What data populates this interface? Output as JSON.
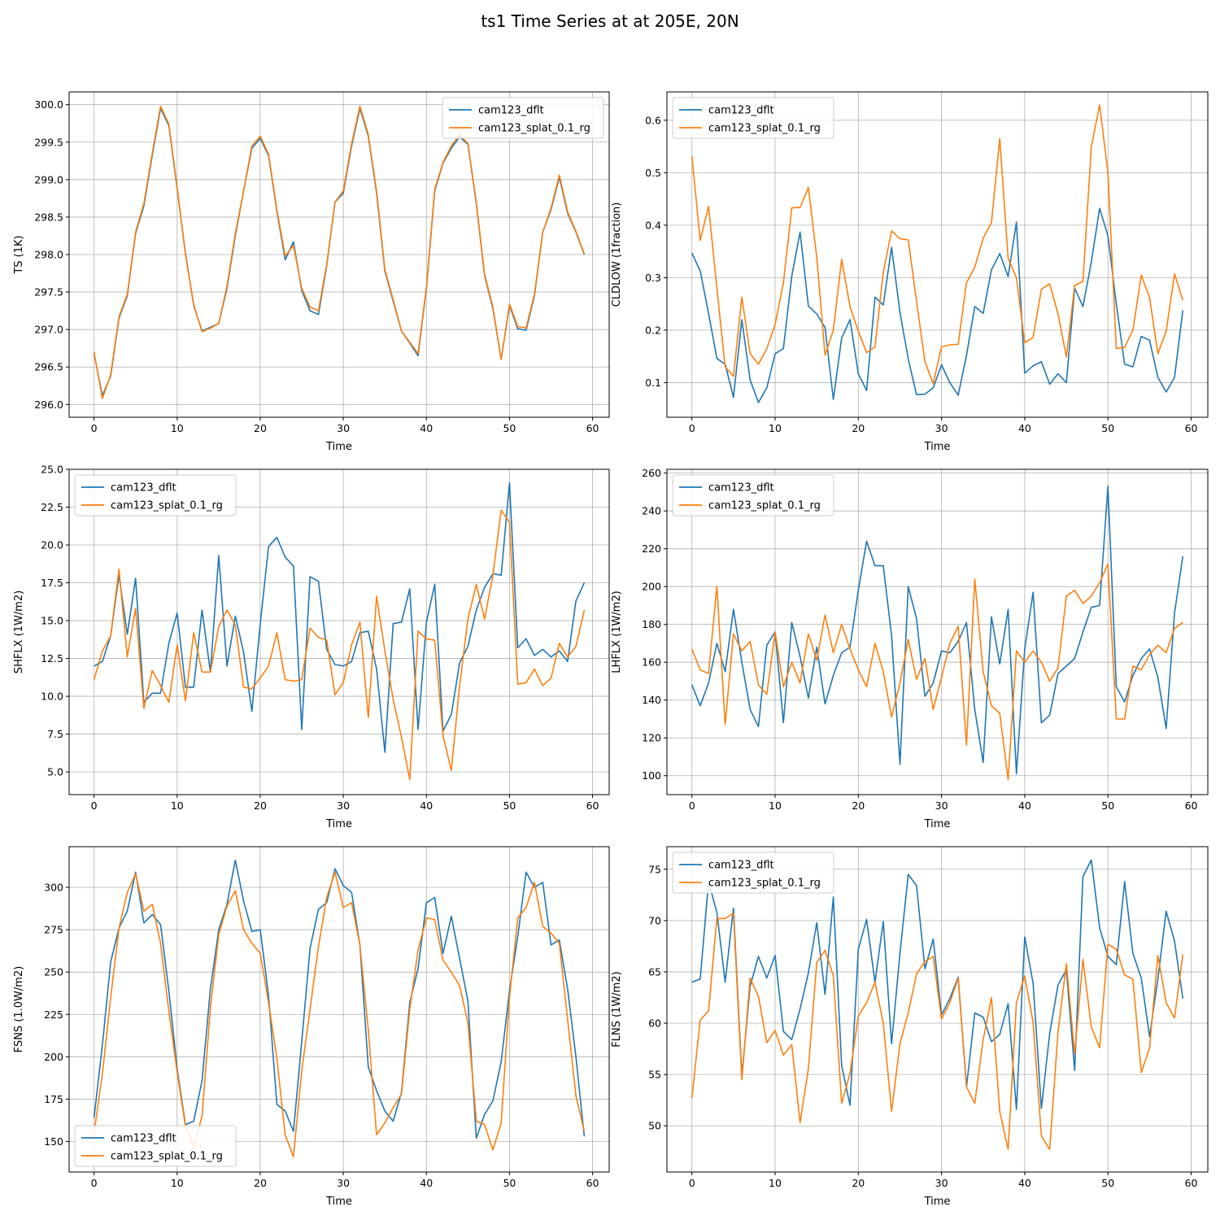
{
  "title": "ts1 Time Series at at 205E, 20N",
  "chart_data": [
    {
      "type": "line",
      "title": "",
      "xlabel": "Time",
      "ylabel": "TS (1K)",
      "xlim": [
        -3,
        62
      ],
      "ylim": [
        295.83,
        300.17
      ],
      "xticks": [
        0,
        10,
        20,
        30,
        40,
        50,
        60
      ],
      "yticks": [
        296.0,
        296.5,
        297.0,
        297.5,
        298.0,
        298.5,
        299.0,
        299.5,
        300.0
      ],
      "ytick_labels": [
        "296.0",
        "296.5",
        "297.0",
        "297.5",
        "298.0",
        "298.5",
        "299.0",
        "299.5",
        "300.0"
      ],
      "grid": true,
      "legend": "upper right",
      "series": [
        {
          "name": "cam123_dflt",
          "color": "#1f77b4",
          "values": [
            296.68,
            296.12,
            296.38,
            297.15,
            297.45,
            298.28,
            298.65,
            299.32,
            299.95,
            299.72,
            298.88,
            298.02,
            297.32,
            296.98,
            297.03,
            297.08,
            297.55,
            298.25,
            298.85,
            299.42,
            299.55,
            299.32,
            298.58,
            297.93,
            298.17,
            297.52,
            297.25,
            297.2,
            297.85,
            298.7,
            298.82,
            299.45,
            299.95,
            299.58,
            298.82,
            297.78,
            297.38,
            296.98,
            296.82,
            296.65,
            297.55,
            298.85,
            299.22,
            299.42,
            299.57,
            299.47,
            298.68,
            297.72,
            297.28,
            296.6,
            297.32,
            297.01,
            296.99,
            297.45,
            298.3,
            298.6,
            299.03,
            298.55,
            298.3,
            298.0
          ]
        },
        {
          "name": "cam123_splat_0.1_rg",
          "color": "#ff7f0e",
          "values": [
            296.7,
            296.08,
            296.4,
            297.17,
            297.47,
            298.3,
            298.68,
            299.35,
            299.98,
            299.74,
            298.9,
            298.0,
            297.33,
            296.97,
            297.02,
            297.08,
            297.58,
            298.28,
            298.85,
            299.45,
            299.58,
            299.34,
            298.6,
            297.98,
            298.12,
            297.55,
            297.3,
            297.25,
            297.87,
            298.7,
            298.85,
            299.48,
            299.98,
            299.6,
            298.85,
            297.8,
            297.4,
            296.98,
            296.83,
            296.68,
            297.57,
            298.87,
            299.23,
            299.45,
            299.6,
            299.48,
            298.7,
            297.74,
            297.3,
            296.6,
            297.34,
            297.04,
            297.02,
            297.47,
            298.3,
            298.62,
            299.06,
            298.57,
            298.31,
            298.01
          ]
        }
      ]
    },
    {
      "type": "line",
      "title": "",
      "xlabel": "Time",
      "ylabel": "CLDLOW (1fraction)",
      "xlim": [
        -3,
        62
      ],
      "ylim": [
        0.034,
        0.654
      ],
      "xticks": [
        0,
        10,
        20,
        30,
        40,
        50,
        60
      ],
      "yticks": [
        0.1,
        0.2,
        0.3,
        0.4,
        0.5,
        0.6
      ],
      "ytick_labels": [
        "0.1",
        "0.2",
        "0.3",
        "0.4",
        "0.5",
        "0.6"
      ],
      "grid": true,
      "legend": "upper left",
      "series": [
        {
          "name": "cam123_dflt",
          "color": "#1f77b4",
          "values": [
            0.347,
            0.313,
            0.232,
            0.146,
            0.135,
            0.072,
            0.22,
            0.105,
            0.062,
            0.09,
            0.155,
            0.165,
            0.303,
            0.387,
            0.246,
            0.231,
            0.205,
            0.068,
            0.185,
            0.22,
            0.117,
            0.085,
            0.263,
            0.248,
            0.358,
            0.234,
            0.145,
            0.077,
            0.078,
            0.09,
            0.134,
            0.1,
            0.076,
            0.152,
            0.245,
            0.232,
            0.315,
            0.346,
            0.302,
            0.406,
            0.118,
            0.132,
            0.14,
            0.097,
            0.117,
            0.1,
            0.28,
            0.245,
            0.33,
            0.432,
            0.38,
            0.25,
            0.135,
            0.13,
            0.188,
            0.181,
            0.11,
            0.082,
            0.11,
            0.238
          ]
        },
        {
          "name": "cam123_splat_0.1_rg",
          "color": "#ff7f0e",
          "values": [
            0.531,
            0.371,
            0.436,
            0.28,
            0.13,
            0.112,
            0.263,
            0.155,
            0.135,
            0.165,
            0.211,
            0.29,
            0.433,
            0.434,
            0.472,
            0.339,
            0.152,
            0.2,
            0.335,
            0.245,
            0.198,
            0.157,
            0.168,
            0.31,
            0.389,
            0.374,
            0.372,
            0.255,
            0.14,
            0.098,
            0.168,
            0.172,
            0.173,
            0.29,
            0.32,
            0.375,
            0.405,
            0.565,
            0.337,
            0.3,
            0.176,
            0.186,
            0.278,
            0.288,
            0.231,
            0.149,
            0.285,
            0.293,
            0.55,
            0.629,
            0.5,
            0.165,
            0.167,
            0.2,
            0.305,
            0.262,
            0.155,
            0.198,
            0.307,
            0.257
          ]
        }
      ]
    },
    {
      "type": "line",
      "title": "",
      "xlabel": "Time",
      "ylabel": "SHFLX (1W/m2)",
      "xlim": [
        -3,
        62
      ],
      "ylim": [
        3.5,
        25.0
      ],
      "xticks": [
        0,
        10,
        20,
        30,
        40,
        50,
        60
      ],
      "yticks": [
        5.0,
        7.5,
        10.0,
        12.5,
        15.0,
        17.5,
        20.0,
        22.5,
        25.0
      ],
      "ytick_labels": [
        "5.0",
        "7.5",
        "10.0",
        "12.5",
        "15.0",
        "17.5",
        "20.0",
        "22.5",
        "25.0"
      ],
      "grid": true,
      "legend": "upper left",
      "series": [
        {
          "name": "cam123_dflt",
          "color": "#1f77b4",
          "values": [
            12.0,
            12.3,
            14.0,
            18.0,
            14.1,
            17.8,
            9.6,
            10.2,
            10.2,
            13.5,
            15.5,
            10.6,
            10.6,
            15.7,
            11.6,
            19.3,
            12.0,
            15.3,
            12.9,
            9.0,
            14.8,
            19.9,
            20.5,
            19.2,
            18.6,
            7.8,
            17.9,
            17.6,
            13.1,
            12.1,
            12.0,
            12.3,
            14.2,
            14.3,
            11.8,
            6.3,
            14.8,
            14.9,
            17.1,
            7.8,
            14.9,
            17.4,
            7.7,
            8.8,
            12.2,
            13.3,
            15.7,
            17.2,
            18.1,
            18.0,
            24.1,
            13.2,
            13.8,
            12.7,
            13.1,
            12.6,
            13.0,
            12.3,
            16.3,
            17.5
          ]
        },
        {
          "name": "cam123_splat_0.1_rg",
          "color": "#ff7f0e",
          "values": [
            11.1,
            13.0,
            14.0,
            18.4,
            12.6,
            15.8,
            9.2,
            11.7,
            10.7,
            9.6,
            13.4,
            9.7,
            14.2,
            11.6,
            11.6,
            14.6,
            15.7,
            14.7,
            10.6,
            10.5,
            11.2,
            12.0,
            14.2,
            11.1,
            11.0,
            11.1,
            14.5,
            13.9,
            13.7,
            10.1,
            10.9,
            13.4,
            14.9,
            8.6,
            16.6,
            13.0,
            9.8,
            7.3,
            4.5,
            14.3,
            13.8,
            13.7,
            7.4,
            5.1,
            10.7,
            15.1,
            17.4,
            15.1,
            18.0,
            22.3,
            21.5,
            10.8,
            10.9,
            11.8,
            10.7,
            11.2,
            13.5,
            12.6,
            13.3,
            15.7
          ]
        }
      ]
    },
    {
      "type": "line",
      "title": "",
      "xlabel": "Time",
      "ylabel": "LHFLX (1W/m2)",
      "xlim": [
        -3,
        62
      ],
      "ylim": [
        90,
        262
      ],
      "xticks": [
        0,
        10,
        20,
        30,
        40,
        50,
        60
      ],
      "yticks": [
        100,
        120,
        140,
        160,
        180,
        200,
        220,
        240,
        260
      ],
      "ytick_labels": [
        "100",
        "120",
        "140",
        "160",
        "180",
        "200",
        "220",
        "240",
        "260"
      ],
      "grid": true,
      "legend": "upper left",
      "series": [
        {
          "name": "cam123_dflt",
          "color": "#1f77b4",
          "values": [
            148,
            137,
            149,
            170,
            155,
            188,
            160,
            135,
            126,
            169,
            176,
            128,
            181,
            163,
            141,
            168,
            138,
            153,
            165,
            168,
            198,
            224,
            211,
            211,
            174,
            106,
            200,
            183,
            142,
            149,
            166,
            165,
            171,
            181,
            135,
            107,
            184,
            159,
            188,
            101,
            167,
            197,
            128,
            132,
            154,
            158,
            162,
            176,
            189,
            190,
            253,
            147,
            139,
            153,
            162,
            167,
            152,
            125,
            186,
            216
          ]
        },
        {
          "name": "cam123_splat_0.1_rg",
          "color": "#ff7f0e",
          "values": [
            167,
            156,
            154,
            200,
            127,
            175,
            166,
            171,
            148,
            143,
            176,
            147,
            160,
            149,
            175,
            161,
            185,
            165,
            180,
            167,
            156,
            147,
            170,
            155,
            131,
            149,
            172,
            151,
            162,
            135,
            152,
            170,
            179,
            116,
            204,
            155,
            137,
            133,
            98,
            166,
            160,
            166,
            160,
            150,
            157,
            195,
            198,
            191,
            195,
            202,
            212,
            130,
            130,
            158,
            156,
            164,
            169,
            165,
            178,
            181
          ]
        }
      ]
    },
    {
      "type": "line",
      "title": "",
      "xlabel": "Time",
      "ylabel": "FSNS (1.0W/m2)",
      "xlim": [
        -3,
        62
      ],
      "ylim": [
        132,
        324
      ],
      "xticks": [
        0,
        10,
        20,
        30,
        40,
        50,
        60
      ],
      "yticks": [
        150,
        175,
        200,
        225,
        250,
        275,
        300
      ],
      "ytick_labels": [
        "150",
        "175",
        "200",
        "225",
        "250",
        "275",
        "300"
      ],
      "grid": true,
      "legend": "lower left",
      "series": [
        {
          "name": "cam123_dflt",
          "color": "#1f77b4",
          "values": [
            164,
            207,
            256,
            276,
            286,
            309,
            279,
            284,
            278,
            239,
            193,
            160,
            162,
            186,
            240,
            275,
            290,
            316,
            292,
            274,
            275,
            236,
            172,
            168,
            156,
            209,
            264,
            287,
            291,
            311,
            301,
            297,
            266,
            194,
            180,
            168,
            162,
            179,
            232,
            252,
            291,
            294,
            261,
            283,
            258,
            233,
            152,
            166,
            174,
            197,
            239,
            271,
            309,
            300,
            303,
            266,
            269,
            240,
            200,
            153
          ]
        },
        {
          "name": "cam123_splat_0.1_rg",
          "color": "#ff7f0e",
          "values": [
            155,
            190,
            235,
            276,
            297,
            308,
            286,
            290,
            267,
            227,
            191,
            159,
            147,
            165,
            229,
            272,
            289,
            298,
            275,
            267,
            261,
            232,
            199,
            154,
            141,
            192,
            228,
            265,
            294,
            309,
            288,
            291,
            266,
            216,
            154,
            161,
            170,
            178,
            228,
            263,
            282,
            281,
            257,
            250,
            242,
            220,
            162,
            160,
            145,
            161,
            235,
            282,
            288,
            303,
            277,
            273,
            267,
            222,
            177,
            156
          ]
        }
      ]
    },
    {
      "type": "line",
      "title": "",
      "xlabel": "Time",
      "ylabel": "FLNS (1W/m2)",
      "xlim": [
        -3,
        62
      ],
      "ylim": [
        45.5,
        77.2
      ],
      "xticks": [
        0,
        10,
        20,
        30,
        40,
        50,
        60
      ],
      "yticks": [
        50,
        55,
        60,
        65,
        70,
        75
      ],
      "ytick_labels": [
        "50",
        "55",
        "60",
        "65",
        "70",
        "75"
      ],
      "grid": true,
      "legend": "upper left",
      "series": [
        {
          "name": "cam123_dflt",
          "color": "#1f77b4",
          "values": [
            64.0,
            64.3,
            73.8,
            70.8,
            64.0,
            71.2,
            54.9,
            63.6,
            66.5,
            64.4,
            66.6,
            59.2,
            58.4,
            61.4,
            64.9,
            69.8,
            62.8,
            72.3,
            55.9,
            52.0,
            67.2,
            70.1,
            64.0,
            69.9,
            58.0,
            66.8,
            74.5,
            73.4,
            65.3,
            68.2,
            60.8,
            62.4,
            64.5,
            53.8,
            61.0,
            60.6,
            58.2,
            58.9,
            61.9,
            51.6,
            68.4,
            63.9,
            51.7,
            59.0,
            63.7,
            65.2,
            55.4,
            74.3,
            75.9,
            69.3,
            66.5,
            65.7,
            73.8,
            66.8,
            64.4,
            58.7,
            64.3,
            70.9,
            68.0,
            62.4
          ]
        },
        {
          "name": "cam123_splat_0.1_rg",
          "color": "#ff7f0e",
          "values": [
            52.7,
            60.3,
            61.2,
            70.2,
            70.2,
            70.7,
            54.5,
            64.4,
            62.6,
            58.1,
            59.3,
            56.9,
            57.9,
            50.3,
            55.6,
            65.9,
            67.1,
            64.6,
            52.2,
            55.1,
            60.7,
            62.0,
            64.0,
            60.0,
            51.4,
            58.0,
            61.0,
            64.8,
            66.0,
            66.5,
            60.4,
            62.0,
            64.4,
            53.8,
            52.2,
            58.4,
            62.5,
            51.4,
            47.7,
            62.0,
            64.6,
            60.1,
            49.0,
            47.7,
            59.1,
            65.8,
            57.0,
            66.2,
            59.6,
            57.6,
            67.7,
            67.2,
            64.7,
            64.3,
            55.2,
            57.6,
            66.6,
            62.0,
            60.5,
            66.7
          ]
        }
      ]
    }
  ]
}
